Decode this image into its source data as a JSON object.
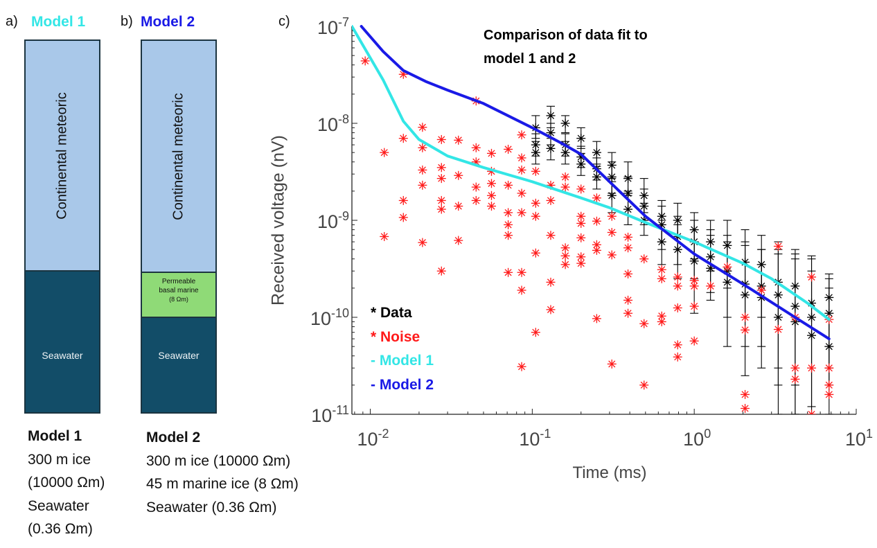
{
  "panel_a": {
    "letter": "a)",
    "title": "Model 1",
    "title_color": "#33e6e6",
    "layers": [
      {
        "label": "Continental meteoric",
        "color": "#a9c8e9"
      },
      {
        "label": "Seawater",
        "color": "#124d68"
      }
    ],
    "description": {
      "heading": "Model 1",
      "lines": [
        "300 m ice",
        "(10000 Ωm)",
        "Seawater",
        "(0.36 Ωm)"
      ]
    }
  },
  "panel_b": {
    "letter": "b)",
    "title": "Model 2",
    "title_color": "#1a1ae6",
    "layers": [
      {
        "label": "Continental meteoric",
        "color": "#a9c8e9"
      },
      {
        "label_lines": [
          "Permeable",
          "basal marine",
          "(8 Ωm)"
        ],
        "color": "#8fda77"
      },
      {
        "label": "Seawater",
        "color": "#124d68"
      }
    ],
    "description": {
      "heading": "Model 2",
      "lines": [
        "300 m ice (10000 Ωm)",
        "45 m marine ice (8 Ωm)",
        "Seawater (0.36 Ωm)"
      ]
    }
  },
  "chart_data": {
    "panel_letter": "c)",
    "type": "scatter",
    "title_lines": [
      "Comparison of data fit to",
      "model 1 and 2"
    ],
    "xlabel": "Time (ms)",
    "ylabel": "Received voltage (nV)",
    "xscale": "log",
    "yscale": "log",
    "xlim": [
      0.0077,
      10
    ],
    "ylim": [
      1e-11,
      1e-07
    ],
    "xticks": [
      {
        "base": "10",
        "exp": "-2",
        "value": 0.01
      },
      {
        "base": "10",
        "exp": "-1",
        "value": 0.1
      },
      {
        "base": "10",
        "exp": "0",
        "value": 1
      },
      {
        "base": "10",
        "exp": "1",
        "value": 10
      }
    ],
    "yticks": [
      {
        "base": "10",
        "exp": "-7",
        "value": 1e-07
      },
      {
        "base": "10",
        "exp": "-8",
        "value": 1e-08
      },
      {
        "base": "10",
        "exp": "-9",
        "value": 1e-09
      },
      {
        "base": "10",
        "exp": "-10",
        "value": 1e-10
      },
      {
        "base": "10",
        "exp": "-11",
        "value": 1e-11
      }
    ],
    "grid": false,
    "legend_position": "bottom-left",
    "legend": [
      {
        "label": "* Data",
        "color": "#000000"
      },
      {
        "label": "* Noise",
        "color": "#ff1a1a"
      },
      {
        "label": "- Model 1",
        "color": "#33e6e6"
      },
      {
        "label": "- Model 2",
        "color": "#1a1ae6"
      }
    ],
    "series": [
      {
        "name": "Model 1",
        "kind": "line",
        "color": "#33e6e6",
        "points": [
          [
            0.0077,
            1e-07
          ],
          [
            0.012,
            2.8e-08
          ],
          [
            0.016,
            1.05e-08
          ],
          [
            0.02,
            6.8e-09
          ],
          [
            0.03,
            4.6e-09
          ],
          [
            0.05,
            3.5e-09
          ],
          [
            0.1,
            2.5e-09
          ],
          [
            0.2,
            1.7e-09
          ],
          [
            0.3,
            1.35e-09
          ],
          [
            0.5,
            9.5e-10
          ],
          [
            1,
            6e-10
          ],
          [
            2,
            3.6e-10
          ],
          [
            3,
            2.5e-10
          ],
          [
            5,
            1.4e-10
          ],
          [
            6.8,
            9.5e-11
          ]
        ]
      },
      {
        "name": "Model 2",
        "kind": "line",
        "color": "#1a1ae6",
        "points": [
          [
            0.0088,
            1e-07
          ],
          [
            0.012,
            5.5e-08
          ],
          [
            0.016,
            3.5e-08
          ],
          [
            0.022,
            2.7e-08
          ],
          [
            0.03,
            2.2e-08
          ],
          [
            0.05,
            1.6e-08
          ],
          [
            0.1,
            9e-09
          ],
          [
            0.15,
            6.3e-09
          ],
          [
            0.2,
            4.8e-09
          ],
          [
            0.3,
            2.5e-09
          ],
          [
            0.5,
            1.1e-09
          ],
          [
            1,
            4.5e-10
          ],
          [
            2,
            2.2e-10
          ],
          [
            4,
            1.05e-10
          ],
          [
            6.8,
            6e-11
          ]
        ]
      },
      {
        "name": "Data",
        "kind": "errorbar",
        "color": "#000000",
        "points": [
          [
            0.105,
            9e-09,
            7e-09,
            1.2e-08
          ],
          [
            0.105,
            6e-09,
            4.6e-09,
            7.8e-09
          ],
          [
            0.105,
            5e-09,
            3.8e-09,
            6.5e-09
          ],
          [
            0.13,
            1.2e-08,
            9e-09,
            1.5e-08
          ],
          [
            0.13,
            8e-09,
            6e-09,
            1e-08
          ],
          [
            0.13,
            5.5e-09,
            4.2e-09,
            7e-09
          ],
          [
            0.16,
            1e-08,
            8e-09,
            1.2e-08
          ],
          [
            0.16,
            6e-09,
            4.6e-09,
            7.8e-09
          ],
          [
            0.16,
            5e-09,
            3.8e-09,
            6.5e-09
          ],
          [
            0.2,
            7e-09,
            5.5e-09,
            9e-09
          ],
          [
            0.2,
            4.5e-09,
            3.5e-09,
            5.8e-09
          ],
          [
            0.2,
            3.8e-09,
            2.9e-09,
            4.9e-09
          ],
          [
            0.25,
            5e-09,
            3.8e-09,
            6.5e-09
          ],
          [
            0.25,
            3.4e-09,
            2.6e-09,
            4.4e-09
          ],
          [
            0.25,
            2.8e-09,
            2.1e-09,
            3.6e-09
          ],
          [
            0.31,
            3.7e-09,
            2.5e-09,
            5e-09
          ],
          [
            0.31,
            2.8e-09,
            1.9e-09,
            4e-09
          ],
          [
            0.31,
            1.8e-09,
            1.2e-09,
            2.7e-09
          ],
          [
            0.39,
            2.7e-09,
            1.8e-09,
            4e-09
          ],
          [
            0.39,
            1.9e-09,
            1.3e-09,
            2.8e-09
          ],
          [
            0.39,
            1.3e-09,
            9e-10,
            2e-09
          ],
          [
            0.49,
            1.8e-09,
            1.2e-09,
            2.7e-09
          ],
          [
            0.49,
            1.4e-09,
            9e-10,
            2.1e-09
          ],
          [
            0.49,
            1e-09,
            7e-10,
            1.5e-09
          ],
          [
            0.63,
            1.1e-09,
            6e-10,
            1.6e-09
          ],
          [
            0.63,
            9e-10,
            5e-10,
            1.4e-09
          ],
          [
            0.63,
            6e-10,
            3.5e-10,
            1e-09
          ],
          [
            0.79,
            1e-09,
            5e-10,
            1.5e-09
          ],
          [
            0.79,
            6.8e-10,
            3.5e-10,
            1.1e-09
          ],
          [
            0.79,
            5e-10,
            2.5e-10,
            9e-10
          ],
          [
            1.0,
            8e-10,
            4e-10,
            1.2e-09
          ],
          [
            1.0,
            6e-10,
            2.5e-10,
            1e-09
          ],
          [
            1.0,
            3.8e-10,
            1.1e-10,
            8e-10
          ],
          [
            1.26,
            6e-10,
            3e-10,
            1e-09
          ],
          [
            1.26,
            4.2e-10,
            1.8e-10,
            8e-10
          ],
          [
            1.26,
            3.2e-10,
            1.5e-10,
            7e-10
          ],
          [
            1.6,
            5.5e-10,
            2e-10,
            1e-09
          ],
          [
            1.6,
            3e-10,
            1e-10,
            7e-10
          ],
          [
            1.6,
            2.3e-10,
            5e-11,
            6e-10
          ],
          [
            2.06,
            3.7e-10,
            1e-10,
            8e-10
          ],
          [
            2.06,
            2.2e-10,
            5e-11,
            6e-10
          ],
          [
            2.06,
            1.7e-10,
            2.5e-11,
            5.5e-10
          ],
          [
            2.6,
            3.5e-10,
            1e-10,
            7e-10
          ],
          [
            2.6,
            2.1e-10,
            5e-11,
            5e-10
          ],
          [
            2.6,
            1.6e-10,
            3e-11,
            5e-10
          ],
          [
            3.3,
            2.3e-10,
            3e-11,
            6e-10
          ],
          [
            3.3,
            1.7e-10,
            2e-11,
            5e-10
          ],
          [
            3.3,
            1e-10,
            1e-11,
            4.5e-10
          ],
          [
            4.2,
            2.1e-10,
            2e-11,
            5e-10
          ],
          [
            4.2,
            1.3e-10,
            1e-11,
            4.5e-10
          ],
          [
            4.2,
            9e-11,
            1e-11,
            4e-10
          ],
          [
            5.3,
            1.4e-10,
            1.2e-11,
            4.3e-10
          ],
          [
            5.3,
            1e-10,
            1e-11,
            4e-10
          ],
          [
            5.3,
            6.5e-11,
            1e-11,
            3e-10
          ],
          [
            6.8,
            1.6e-10,
            3e-11,
            2.8e-10
          ],
          [
            6.8,
            1.1e-10,
            2e-11,
            2.5e-10
          ],
          [
            6.8,
            5e-11,
            1e-11,
            2e-10
          ]
        ]
      },
      {
        "name": "Noise",
        "kind": "scatter",
        "color": "#ff1a1a",
        "points": [
          [
            0.0093,
            4.4e-08
          ],
          [
            0.016,
            3.2e-08
          ],
          [
            0.0122,
            5e-09
          ],
          [
            0.0122,
            6.8e-10
          ],
          [
            0.016,
            7e-09
          ],
          [
            0.016,
            1.6e-09
          ],
          [
            0.016,
            1.07e-09
          ],
          [
            0.021,
            9.1e-09
          ],
          [
            0.021,
            5.6e-09
          ],
          [
            0.021,
            3.3e-09
          ],
          [
            0.021,
            2.3e-09
          ],
          [
            0.021,
            5.9e-10
          ],
          [
            0.0275,
            6.8e-09
          ],
          [
            0.0275,
            3.5e-09
          ],
          [
            0.0275,
            2.7e-09
          ],
          [
            0.0275,
            1.6e-09
          ],
          [
            0.0275,
            1.3e-09
          ],
          [
            0.0275,
            3e-10
          ],
          [
            0.035,
            6.7e-09
          ],
          [
            0.035,
            2.9e-09
          ],
          [
            0.035,
            1.4e-09
          ],
          [
            0.035,
            6.2e-10
          ],
          [
            0.045,
            1.7e-08
          ],
          [
            0.045,
            5.6e-09
          ],
          [
            0.045,
            4e-09
          ],
          [
            0.045,
            2.2e-09
          ],
          [
            0.045,
            1.6e-09
          ],
          [
            0.056,
            4.9e-09
          ],
          [
            0.056,
            3.2e-09
          ],
          [
            0.056,
            2.4e-09
          ],
          [
            0.056,
            1.8e-09
          ],
          [
            0.056,
            1.4e-09
          ],
          [
            0.071,
            5.4e-09
          ],
          [
            0.071,
            2.3e-09
          ],
          [
            0.071,
            1.2e-09
          ],
          [
            0.071,
            9e-10
          ],
          [
            0.071,
            7e-10
          ],
          [
            0.071,
            2.9e-10
          ],
          [
            0.086,
            7.6e-09
          ],
          [
            0.086,
            4.4e-09
          ],
          [
            0.086,
            3.3e-09
          ],
          [
            0.086,
            1.9e-09
          ],
          [
            0.086,
            1.2e-09
          ],
          [
            0.086,
            2.9e-10
          ],
          [
            0.086,
            1.9e-10
          ],
          [
            0.086,
            3.1e-11
          ],
          [
            0.105,
            3.2e-09
          ],
          [
            0.105,
            1.5e-09
          ],
          [
            0.105,
            1.1e-09
          ],
          [
            0.105,
            4.6e-10
          ],
          [
            0.105,
            7e-11
          ],
          [
            0.13,
            2.3e-09
          ],
          [
            0.13,
            1.6e-09
          ],
          [
            0.13,
            7e-10
          ],
          [
            0.13,
            2.3e-10
          ],
          [
            0.13,
            1.2e-10
          ],
          [
            0.16,
            2.8e-09
          ],
          [
            0.16,
            2.2e-09
          ],
          [
            0.16,
            5.2e-10
          ],
          [
            0.16,
            4.3e-10
          ],
          [
            0.16,
            3.5e-10
          ],
          [
            0.2,
            2.1e-09
          ],
          [
            0.2,
            1.1e-09
          ],
          [
            0.2,
            9.3e-10
          ],
          [
            0.2,
            6.6e-10
          ],
          [
            0.2,
            4.2e-10
          ],
          [
            0.2,
            3.6e-10
          ],
          [
            0.25,
            1.7e-09
          ],
          [
            0.25,
            9.8e-10
          ],
          [
            0.25,
            5.6e-10
          ],
          [
            0.25,
            4.9e-10
          ],
          [
            0.25,
            9.7e-11
          ],
          [
            0.31,
            1.1e-09
          ],
          [
            0.31,
            7.5e-10
          ],
          [
            0.31,
            4.4e-10
          ],
          [
            0.31,
            3.3e-11
          ],
          [
            0.39,
            6.7e-10
          ],
          [
            0.39,
            5.2e-10
          ],
          [
            0.39,
            2.8e-10
          ],
          [
            0.39,
            1.5e-10
          ],
          [
            0.39,
            1.1e-10
          ],
          [
            0.49,
            4e-10
          ],
          [
            0.49,
            8.6e-11
          ],
          [
            0.49,
            2e-11
          ],
          [
            0.63,
            3.1e-10
          ],
          [
            0.63,
            2.5e-10
          ],
          [
            0.63,
            1.03e-10
          ],
          [
            0.63,
            9e-11
          ],
          [
            0.79,
            2.6e-10
          ],
          [
            0.79,
            2.1e-10
          ],
          [
            0.79,
            1.25e-10
          ],
          [
            0.79,
            5.2e-11
          ],
          [
            0.79,
            3.9e-11
          ],
          [
            1.0,
            2.4e-10
          ],
          [
            1.0,
            2.1e-10
          ],
          [
            1.0,
            1.3e-10
          ],
          [
            1.0,
            5.7e-11
          ],
          [
            1.26,
            2.1e-10
          ],
          [
            1.6,
            3.3e-10
          ],
          [
            2.06,
            1e-10
          ],
          [
            2.06,
            7.4e-11
          ],
          [
            2.06,
            1.6e-11
          ],
          [
            2.06,
            1.15e-11
          ],
          [
            2.6,
            1.9e-10
          ],
          [
            3.3,
            5.4e-10
          ],
          [
            3.3,
            7.5e-11
          ],
          [
            4.2,
            1e-10
          ],
          [
            4.2,
            3e-11
          ],
          [
            4.2,
            2.3e-11
          ],
          [
            5.3,
            2.6e-10
          ],
          [
            5.3,
            3e-11
          ],
          [
            5.3,
            1e-11
          ],
          [
            6.8,
            9.5e-11
          ],
          [
            6.8,
            3e-11
          ],
          [
            6.8,
            2e-11
          ],
          [
            6.8,
            1.6e-11
          ]
        ]
      }
    ]
  }
}
